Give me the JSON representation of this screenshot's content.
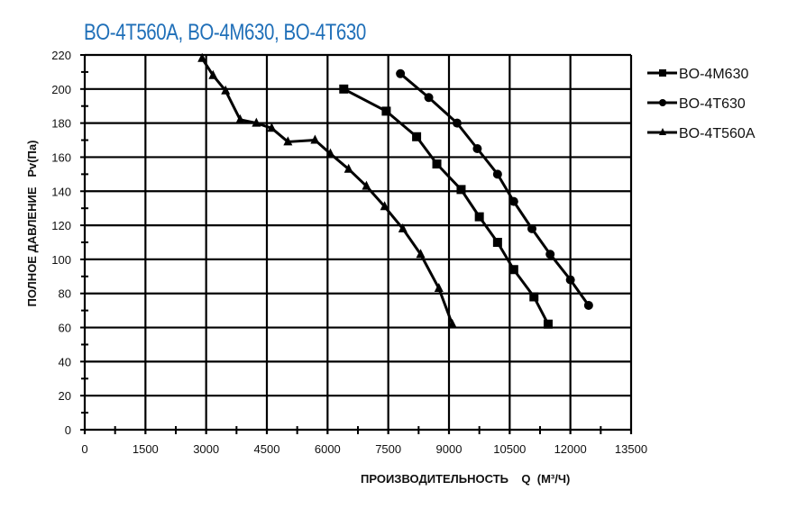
{
  "chart_data": {
    "type": "line",
    "title": "BO-4T560A, BO-4M630, BO-4T630",
    "xlabel": "ПРОИЗВОДИТЕЛЬНОСТЬ    Q  (М³/Ч)",
    "ylabel": "ПОЛНОЕ ДАВЛЕНИЕ   Pv(Па)",
    "xlim": [
      0,
      13500
    ],
    "ylim": [
      0,
      220
    ],
    "xticks": [
      "0",
      "1500",
      "3000",
      "4500",
      "6000",
      "7500",
      "9000",
      "10500",
      "12000",
      "13500"
    ],
    "yticks": [
      "0",
      "20",
      "40",
      "60",
      "80",
      "100",
      "120",
      "140",
      "160",
      "180",
      "200",
      "220"
    ],
    "grid": true,
    "legend_position": "right",
    "series": [
      {
        "name": "BO-4M630",
        "marker": "square",
        "x": [
          6400,
          7450,
          8200,
          8700,
          9300,
          9750,
          10200,
          10600,
          11100,
          11450
        ],
        "y": [
          200,
          187,
          172,
          156,
          141,
          125,
          110,
          94,
          78,
          62
        ]
      },
      {
        "name": "BO-4T630",
        "marker": "circle",
        "x": [
          7800,
          8500,
          9200,
          9700,
          10200,
          10600,
          11050,
          11500,
          12000,
          12450
        ],
        "y": [
          209,
          195,
          180,
          165,
          150,
          134,
          118,
          103,
          88,
          73
        ]
      },
      {
        "name": "BO-4T560A",
        "marker": "triangle",
        "x": [
          2900,
          3170,
          3480,
          3840,
          4240,
          4620,
          5020,
          5690,
          6070,
          6520,
          6960,
          7410,
          7860,
          8300,
          8750,
          9080
        ],
        "y": [
          218,
          208,
          199,
          182,
          180,
          177,
          169,
          170,
          162,
          153,
          143,
          131,
          118,
          103,
          83,
          62
        ]
      }
    ],
    "colors": {
      "title": "#1f6fb8",
      "lines": "#000000"
    }
  }
}
